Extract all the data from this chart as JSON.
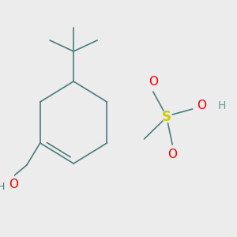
{
  "background_color": "#ececec",
  "bond_color": "#4a7c7c",
  "bond_width": 1.2,
  "atom_colors": {
    "O": "#ee0000",
    "S": "#cccc00",
    "H_bond": "#4a7c7c",
    "H_text": "#6a9a9a"
  },
  "font_size": 9,
  "fig_width": 3.0,
  "fig_height": 3.0,
  "dpi": 100
}
